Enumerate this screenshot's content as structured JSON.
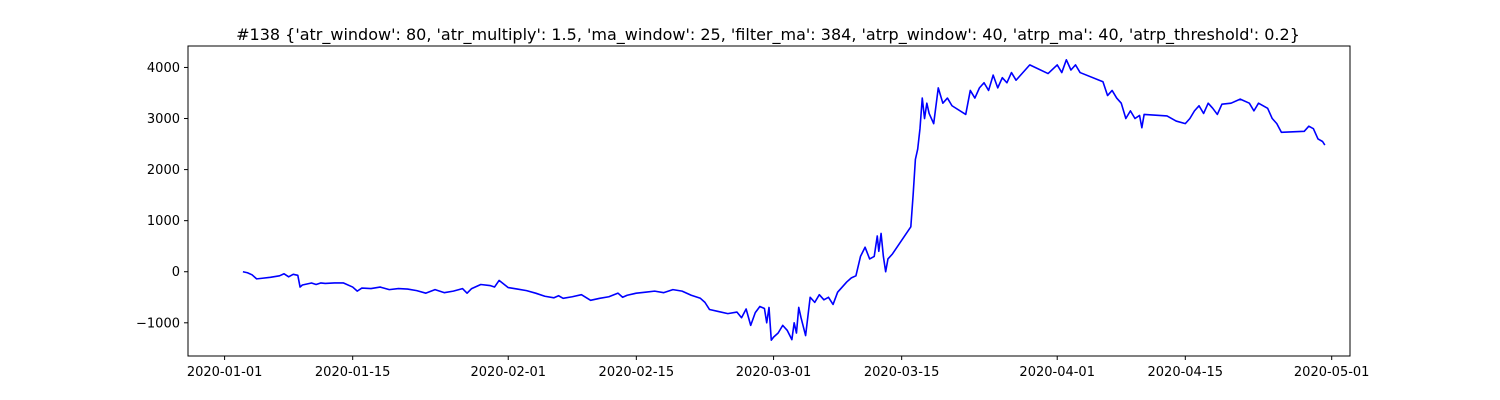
{
  "chart_data": {
    "type": "line",
    "title": "#138 {'atr_window': 80, 'atr_multiply': 1.5, 'ma_window': 25, 'filter_ma': 384, 'atrp_window': 40, 'atrp_ma': 40, 'atrp_threshold': 0.2}",
    "xlabel": "",
    "ylabel": "",
    "x_range": [
      "2019-12-28",
      "2020-05-03"
    ],
    "ylim": [
      -1650,
      4420
    ],
    "x_ticks": [
      "2020-01-01",
      "2020-01-15",
      "2020-02-01",
      "2020-02-15",
      "2020-03-01",
      "2020-03-15",
      "2020-04-01",
      "2020-04-15",
      "2020-05-01"
    ],
    "y_ticks": [
      -1000,
      0,
      1000,
      2000,
      3000,
      4000
    ],
    "y_tick_labels": [
      "−1000",
      "0",
      "1000",
      "2000",
      "3000",
      "4000"
    ],
    "grid": false,
    "series": [
      {
        "color": "#0000ff",
        "points": [
          [
            "2020-01-03",
            0
          ],
          [
            "2020-01-03T12:00",
            -20
          ],
          [
            "2020-01-04",
            -60
          ],
          [
            "2020-01-04T12:00",
            -140
          ],
          [
            "2020-01-05",
            -130
          ],
          [
            "2020-01-06",
            -110
          ],
          [
            "2020-01-07",
            -80
          ],
          [
            "2020-01-07T12:00",
            -40
          ],
          [
            "2020-01-08",
            -100
          ],
          [
            "2020-01-08T12:00",
            -50
          ],
          [
            "2020-01-09",
            -70
          ],
          [
            "2020-01-09T06:00",
            -300
          ],
          [
            "2020-01-09T12:00",
            -260
          ],
          [
            "2020-01-10",
            -240
          ],
          [
            "2020-01-10T12:00",
            -220
          ],
          [
            "2020-01-11",
            -250
          ],
          [
            "2020-01-11T12:00",
            -220
          ],
          [
            "2020-01-12",
            -230
          ],
          [
            "2020-01-13",
            -220
          ],
          [
            "2020-01-14",
            -220
          ],
          [
            "2020-01-15",
            -300
          ],
          [
            "2020-01-15T12:00",
            -380
          ],
          [
            "2020-01-16",
            -320
          ],
          [
            "2020-01-17",
            -330
          ],
          [
            "2020-01-18",
            -300
          ],
          [
            "2020-01-19",
            -350
          ],
          [
            "2020-01-20",
            -330
          ],
          [
            "2020-01-21",
            -340
          ],
          [
            "2020-01-22",
            -370
          ],
          [
            "2020-01-23",
            -420
          ],
          [
            "2020-01-24",
            -350
          ],
          [
            "2020-01-25",
            -410
          ],
          [
            "2020-01-26",
            -380
          ],
          [
            "2020-01-27",
            -330
          ],
          [
            "2020-01-27T12:00",
            -420
          ],
          [
            "2020-01-28",
            -330
          ],
          [
            "2020-01-29",
            -250
          ],
          [
            "2020-01-30",
            -270
          ],
          [
            "2020-01-30T12:00",
            -300
          ],
          [
            "2020-01-31",
            -170
          ],
          [
            "2020-02-01",
            -310
          ],
          [
            "2020-02-02",
            -340
          ],
          [
            "2020-02-03",
            -370
          ],
          [
            "2020-02-04",
            -420
          ],
          [
            "2020-02-05",
            -480
          ],
          [
            "2020-02-06",
            -510
          ],
          [
            "2020-02-06T12:00",
            -470
          ],
          [
            "2020-02-07",
            -520
          ],
          [
            "2020-02-08",
            -490
          ],
          [
            "2020-02-09",
            -450
          ],
          [
            "2020-02-10",
            -560
          ],
          [
            "2020-02-11",
            -520
          ],
          [
            "2020-02-12",
            -490
          ],
          [
            "2020-02-13",
            -420
          ],
          [
            "2020-02-13T12:00",
            -500
          ],
          [
            "2020-02-14",
            -460
          ],
          [
            "2020-02-15",
            -420
          ],
          [
            "2020-02-16",
            -400
          ],
          [
            "2020-02-17",
            -380
          ],
          [
            "2020-02-18",
            -410
          ],
          [
            "2020-02-19",
            -350
          ],
          [
            "2020-02-20",
            -380
          ],
          [
            "2020-02-21",
            -460
          ],
          [
            "2020-02-22",
            -520
          ],
          [
            "2020-02-22T12:00",
            -600
          ],
          [
            "2020-02-23",
            -740
          ],
          [
            "2020-02-24",
            -780
          ],
          [
            "2020-02-25",
            -820
          ],
          [
            "2020-02-26",
            -790
          ],
          [
            "2020-02-26T12:00",
            -900
          ],
          [
            "2020-02-27",
            -730
          ],
          [
            "2020-02-27T12:00",
            -1050
          ],
          [
            "2020-02-28",
            -800
          ],
          [
            "2020-02-28T12:00",
            -680
          ],
          [
            "2020-02-29",
            -720
          ],
          [
            "2020-02-29T06:00",
            -1000
          ],
          [
            "2020-02-29T12:00",
            -700
          ],
          [
            "2020-02-29T18:00",
            -1340
          ],
          [
            "2020-03-01",
            -1280
          ],
          [
            "2020-03-01T12:00",
            -1200
          ],
          [
            "2020-03-02",
            -1050
          ],
          [
            "2020-03-02T12:00",
            -1150
          ],
          [
            "2020-03-03",
            -1330
          ],
          [
            "2020-03-03T06:00",
            -1000
          ],
          [
            "2020-03-03T12:00",
            -1200
          ],
          [
            "2020-03-03T18:00",
            -700
          ],
          [
            "2020-03-04",
            -900
          ],
          [
            "2020-03-04T12:00",
            -1250
          ],
          [
            "2020-03-05",
            -500
          ],
          [
            "2020-03-05T12:00",
            -600
          ],
          [
            "2020-03-06",
            -450
          ],
          [
            "2020-03-06T12:00",
            -550
          ],
          [
            "2020-03-07",
            -500
          ],
          [
            "2020-03-07T12:00",
            -640
          ],
          [
            "2020-03-08",
            -400
          ],
          [
            "2020-03-08T12:00",
            -300
          ],
          [
            "2020-03-09",
            -200
          ],
          [
            "2020-03-09T12:00",
            -120
          ],
          [
            "2020-03-10",
            -80
          ],
          [
            "2020-03-10T12:00",
            300
          ],
          [
            "2020-03-11",
            480
          ],
          [
            "2020-03-11T12:00",
            250
          ],
          [
            "2020-03-12",
            300
          ],
          [
            "2020-03-12T08:00",
            700
          ],
          [
            "2020-03-12T12:00",
            400
          ],
          [
            "2020-03-12T18:00",
            750
          ],
          [
            "2020-03-13",
            300
          ],
          [
            "2020-03-13T06:00",
            0
          ],
          [
            "2020-03-13T12:00",
            250
          ],
          [
            "2020-03-14",
            350
          ],
          [
            "2020-03-16",
            880
          ],
          [
            "2020-03-16T06:00",
            1500
          ],
          [
            "2020-03-16T12:00",
            2200
          ],
          [
            "2020-03-16T18:00",
            2400
          ],
          [
            "2020-03-17",
            2800
          ],
          [
            "2020-03-17T06:00",
            3400
          ],
          [
            "2020-03-17T12:00",
            3000
          ],
          [
            "2020-03-17T18:00",
            3300
          ],
          [
            "2020-03-18",
            3100
          ],
          [
            "2020-03-18T12:00",
            2900
          ],
          [
            "2020-03-19",
            3600
          ],
          [
            "2020-03-19T12:00",
            3300
          ],
          [
            "2020-03-20",
            3400
          ],
          [
            "2020-03-20T12:00",
            3250
          ],
          [
            "2020-03-22",
            3080
          ],
          [
            "2020-03-22T12:00",
            3550
          ],
          [
            "2020-03-23",
            3400
          ],
          [
            "2020-03-23T12:00",
            3600
          ],
          [
            "2020-03-24",
            3700
          ],
          [
            "2020-03-24T12:00",
            3550
          ],
          [
            "2020-03-25",
            3850
          ],
          [
            "2020-03-25T12:00",
            3600
          ],
          [
            "2020-03-26",
            3800
          ],
          [
            "2020-03-26T12:00",
            3700
          ],
          [
            "2020-03-27",
            3900
          ],
          [
            "2020-03-27T12:00",
            3750
          ],
          [
            "2020-03-29",
            4050
          ],
          [
            "2020-03-31",
            3880
          ],
          [
            "2020-04-01",
            4050
          ],
          [
            "2020-04-01T12:00",
            3900
          ],
          [
            "2020-04-02",
            4150
          ],
          [
            "2020-04-02T12:00",
            3950
          ],
          [
            "2020-04-03",
            4050
          ],
          [
            "2020-04-03T12:00",
            3900
          ],
          [
            "2020-04-06",
            3720
          ],
          [
            "2020-04-06T12:00",
            3450
          ],
          [
            "2020-04-07",
            3550
          ],
          [
            "2020-04-07T12:00",
            3400
          ],
          [
            "2020-04-08",
            3300
          ],
          [
            "2020-04-08T12:00",
            3000
          ],
          [
            "2020-04-09",
            3150
          ],
          [
            "2020-04-09T12:00",
            3000
          ],
          [
            "2020-04-10",
            3060
          ],
          [
            "2020-04-10T06:00",
            2820
          ],
          [
            "2020-04-10T12:00",
            3080
          ],
          [
            "2020-04-13",
            3050
          ],
          [
            "2020-04-14",
            2950
          ],
          [
            "2020-04-15",
            2900
          ],
          [
            "2020-04-15T12:00",
            3000
          ],
          [
            "2020-04-16",
            3150
          ],
          [
            "2020-04-16T12:00",
            3250
          ],
          [
            "2020-04-17",
            3100
          ],
          [
            "2020-04-17T12:00",
            3300
          ],
          [
            "2020-04-18",
            3200
          ],
          [
            "2020-04-18T12:00",
            3080
          ],
          [
            "2020-04-19",
            3280
          ],
          [
            "2020-04-20",
            3300
          ],
          [
            "2020-04-21",
            3380
          ],
          [
            "2020-04-22",
            3300
          ],
          [
            "2020-04-22T12:00",
            3150
          ],
          [
            "2020-04-23",
            3300
          ],
          [
            "2020-04-24",
            3200
          ],
          [
            "2020-04-24T12:00",
            3000
          ],
          [
            "2020-04-25",
            2900
          ],
          [
            "2020-04-25T12:00",
            2730
          ],
          [
            "2020-04-28",
            2750
          ],
          [
            "2020-04-28T12:00",
            2850
          ],
          [
            "2020-04-29",
            2800
          ],
          [
            "2020-04-29T12:00",
            2600
          ],
          [
            "2020-04-30",
            2550
          ],
          [
            "2020-04-30T06:00",
            2480
          ]
        ]
      }
    ]
  }
}
